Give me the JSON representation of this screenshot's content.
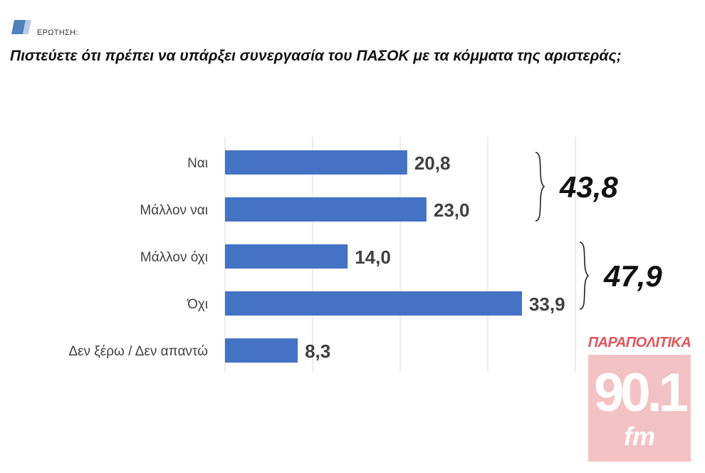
{
  "header": {
    "label": "ΕΡΩΤΗΣΗ:",
    "icon": "flag-icon"
  },
  "question": "Πιστεύετε ότι πρέπει να υπάρξει συνεργασία του ΠΑΣΟΚ με τα κόμματα της αριστεράς;",
  "chart_data": {
    "type": "bar",
    "orientation": "horizontal",
    "categories": [
      "Ναι",
      "Μάλλον ναι",
      "Μάλλον όχι",
      "Όχι",
      "Δεν ξέρω / Δεν απαντώ"
    ],
    "values": [
      20.8,
      23.0,
      14.0,
      33.9,
      8.3
    ],
    "value_labels": [
      "20,8",
      "23,0",
      "14,0",
      "33,9",
      "8,3"
    ],
    "xlim": [
      0,
      40
    ],
    "grid": "vertical",
    "bar_color": "#4472c4",
    "groups": [
      {
        "label": "43,8",
        "members": [
          0,
          1
        ]
      },
      {
        "label": "47,9",
        "members": [
          2,
          3
        ]
      }
    ]
  },
  "logo": {
    "top": "ΠΑΡΑΠΟΛΙΤΙΚΑ",
    "number": "90.1",
    "fm": "fm",
    "color": "#e2545a"
  }
}
